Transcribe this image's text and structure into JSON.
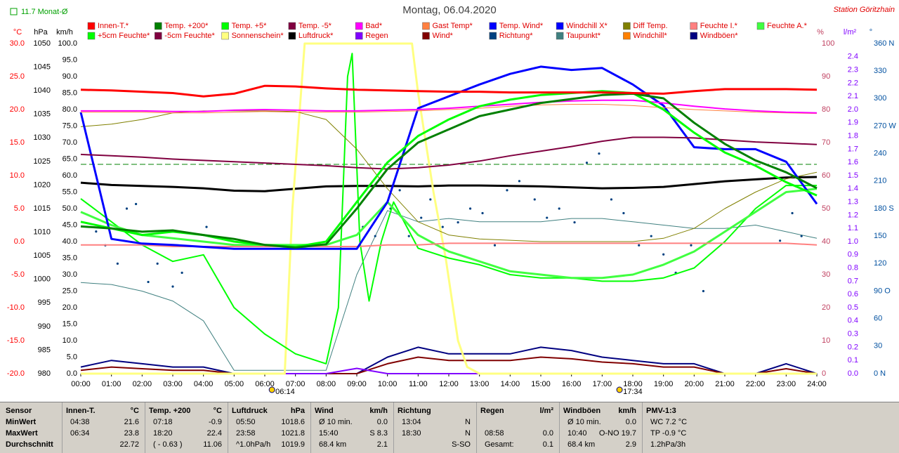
{
  "chart_data": {
    "type": "line",
    "title": "Montag, 06.04.2020",
    "station": "Station Göritzhain",
    "monthly_mean": {
      "value": 11.7,
      "label": "11.7 Monat-Ø"
    },
    "sun_markers": [
      {
        "value": 6.2333,
        "label": "06:14"
      },
      {
        "value": 17.5667,
        "label": "17:34"
      }
    ],
    "x": [
      0,
      1,
      2,
      3,
      4,
      5,
      6,
      7,
      8,
      9,
      10,
      11,
      12,
      13,
      14,
      15,
      16,
      17,
      18,
      19,
      20,
      21,
      22,
      23,
      24
    ],
    "xlim": [
      0,
      24
    ],
    "xticks": [
      {
        "value": 0,
        "label": "00:00"
      },
      {
        "value": 1,
        "label": "01:00"
      },
      {
        "value": 2,
        "label": "02:00"
      },
      {
        "value": 3,
        "label": "03:00"
      },
      {
        "value": 4,
        "label": "04:00"
      },
      {
        "value": 5,
        "label": "05:00"
      },
      {
        "value": 6,
        "label": "06:00"
      },
      {
        "value": 7,
        "label": "07:00"
      },
      {
        "value": 8,
        "label": "08:00"
      },
      {
        "value": 9,
        "label": "09:00"
      },
      {
        "value": 10,
        "label": "10:00"
      },
      {
        "value": 11,
        "label": "11:00"
      },
      {
        "value": 12,
        "label": "12:00"
      },
      {
        "value": 13,
        "label": "13:00"
      },
      {
        "value": 14,
        "label": "14:00"
      },
      {
        "value": 15,
        "label": "15:00"
      },
      {
        "value": 16,
        "label": "16:00"
      },
      {
        "value": 17,
        "label": "17:00"
      },
      {
        "value": 18,
        "label": "18:00"
      },
      {
        "value": 19,
        "label": "19:00"
      },
      {
        "value": 20,
        "label": "20:00"
      },
      {
        "value": 21,
        "label": "21:00"
      },
      {
        "value": 22,
        "label": "22:00"
      },
      {
        "value": 23,
        "label": "23:00"
      },
      {
        "value": 24,
        "label": "24:00"
      }
    ],
    "y_label": "°C",
    "ylim": [
      -20,
      30
    ],
    "yticks": [
      {
        "value": 30,
        "label": "30.0"
      },
      {
        "value": 25,
        "label": "25.0"
      },
      {
        "value": 20,
        "label": "20.0"
      },
      {
        "value": 15,
        "label": "15.0"
      },
      {
        "value": 10,
        "label": "10.0"
      },
      {
        "value": 5,
        "label": "5.0"
      },
      {
        "value": 0,
        "label": "0.0"
      },
      {
        "value": -5,
        "label": "-5.0"
      },
      {
        "value": -10,
        "label": "-10.0"
      },
      {
        "value": -15,
        "label": "-15.0"
      },
      {
        "value": -20,
        "label": "-20.0"
      }
    ],
    "y2_label": "hPa",
    "y2lim": [
      980,
      1050
    ],
    "y2ticks": [
      1050,
      1045,
      1040,
      1035,
      1030,
      1025,
      1020,
      1015,
      1010,
      1005,
      1000,
      995,
      990,
      985,
      980
    ],
    "y3_label": "km/h",
    "y3lim": [
      0,
      100
    ],
    "y3ticks": [
      {
        "value": 100,
        "label": "100.0"
      },
      {
        "value": 95,
        "label": "95.0"
      },
      {
        "value": 90,
        "label": "90.0"
      },
      {
        "value": 85,
        "label": "85.0"
      },
      {
        "value": 80,
        "label": "80.0"
      },
      {
        "value": 75,
        "label": "75.0"
      },
      {
        "value": 70,
        "label": "70.0"
      },
      {
        "value": 65,
        "label": "65.0"
      },
      {
        "value": 60,
        "label": "60.0"
      },
      {
        "value": 55,
        "label": "55.0"
      },
      {
        "value": 50,
        "label": "50.0"
      },
      {
        "value": 45,
        "label": "45.0"
      },
      {
        "value": 40,
        "label": "40.0"
      },
      {
        "value": 35,
        "label": "35.0"
      },
      {
        "value": 30,
        "label": "30.0"
      },
      {
        "value": 25,
        "label": "25.0"
      },
      {
        "value": 20,
        "label": "20.0"
      },
      {
        "value": 15,
        "label": "15.0"
      },
      {
        "value": 10,
        "label": "10.0"
      },
      {
        "value": 5,
        "label": "5.0"
      },
      {
        "value": 0,
        "label": "0.0"
      }
    ],
    "y4_label": "%",
    "y4lim": [
      0,
      100
    ],
    "y4ticks": [
      100,
      90,
      80,
      70,
      60,
      50,
      40,
      30,
      20,
      10,
      0
    ],
    "y5_label": "l/m²",
    "y5lim": [
      0,
      2.5
    ],
    "y5ticks": [
      2.4,
      2.3,
      2.2,
      2.1,
      {
        "value": 2,
        "label": "2.0"
      },
      1.9,
      1.8,
      1.7,
      1.6,
      1.5,
      1.4,
      1.3,
      1.2,
      1.1,
      {
        "value": 1,
        "label": "1.0"
      },
      0.9,
      0.8,
      0.7,
      0.6,
      0.5,
      0.4,
      0.3,
      0.2,
      0.1,
      {
        "value": 0,
        "label": "0.0"
      }
    ],
    "y6_label": "°",
    "y6lim": [
      0,
      360
    ],
    "y6ticks": [
      {
        "value": 360,
        "label": "360 N"
      },
      330,
      300,
      {
        "value": 270,
        "label": "270 W"
      },
      240,
      210,
      {
        "value": 180,
        "label": "180 S"
      },
      150,
      120,
      {
        "value": 90,
        "label": "90 O"
      },
      60,
      30,
      {
        "value": 0,
        "label": "0 N"
      }
    ],
    "series": [
      {
        "name": "Innen-T.*",
        "color": "#ff0000",
        "axis": "y",
        "line_width": 3,
        "values": [
          23.0,
          22.9,
          22.7,
          22.5,
          22.0,
          22.4,
          23.6,
          23.5,
          23.2,
          23.0,
          22.9,
          22.8,
          22.7,
          22.7,
          22.6,
          22.6,
          22.6,
          22.6,
          22.5,
          22.4,
          22.8,
          23.1,
          23.1,
          23.1,
          23.0
        ]
      },
      {
        "name": "Temp. +200*",
        "color": "#008000",
        "axis": "y",
        "line_width": 3,
        "values": [
          2.3,
          2.0,
          1.5,
          1.7,
          1.0,
          0.4,
          -0.5,
          -0.9,
          -0.4,
          5.0,
          11.0,
          15.0,
          17.0,
          19.0,
          20.0,
          21.0,
          21.6,
          22.2,
          22.4,
          21.7,
          18.0,
          14.8,
          12.3,
          10.5,
          8.1
        ]
      },
      {
        "name": "Temp. +5*",
        "color": "#00ff00",
        "axis": "y",
        "line_width": 3,
        "values": [
          3.0,
          2.0,
          1.0,
          1.5,
          1.0,
          0.0,
          -0.5,
          -0.8,
          0.0,
          6.0,
          12.0,
          16.0,
          18.5,
          20.5,
          21.5,
          22.2,
          22.5,
          22.8,
          22.5,
          20.0,
          16.5,
          13.5,
          11.5,
          9.0,
          7.0
        ]
      },
      {
        "name": "Temp. -5*",
        "color": "#800040",
        "axis": "y",
        "line_width": 2,
        "values": [
          13.2,
          13.0,
          12.8,
          12.5,
          12.3,
          12.1,
          11.9,
          11.7,
          11.5,
          11.2,
          11.0,
          11.2,
          11.6,
          12.2,
          13.0,
          13.7,
          14.4,
          15.2,
          15.8,
          15.8,
          15.7,
          15.4,
          15.1,
          14.9,
          14.7
        ]
      },
      {
        "name": "Bad*",
        "color": "#ff00ff",
        "axis": "y",
        "line_width": 2,
        "values": [
          19.8,
          19.8,
          19.8,
          19.7,
          19.7,
          19.9,
          20.0,
          19.9,
          19.8,
          19.8,
          19.9,
          20.0,
          20.2,
          20.5,
          20.8,
          21.1,
          21.3,
          21.4,
          21.4,
          21.0,
          20.5,
          20.1,
          19.8,
          19.6,
          19.5
        ]
      },
      {
        "name": "Gast Temp*",
        "color": "#ff8040",
        "axis": "y",
        "line_width": 1,
        "values": [
          19.6,
          19.6,
          19.6,
          19.5,
          19.5,
          19.6,
          19.7,
          19.6,
          19.6,
          19.6,
          19.7,
          19.8,
          20.0,
          20.2,
          20.5,
          20.7,
          20.8,
          20.8,
          20.6,
          20.3,
          20.0,
          19.8,
          19.6,
          19.5,
          19.4
        ]
      },
      {
        "name": "Temp. Wind*",
        "color": "#0000ff",
        "axis": "y",
        "line_width": 3,
        "values": [
          19.6,
          0.4,
          -0.3,
          -0.5,
          -0.8,
          -1.1,
          -1.1,
          -1.1,
          -1.1,
          -1.1,
          6.0,
          20.2,
          22.0,
          23.8,
          25.4,
          26.5,
          26.0,
          26.3,
          23.8,
          20.6,
          14.3,
          14.0,
          14.0,
          12.1,
          5.7
        ]
      },
      {
        "name": "Windchill X*",
        "color": "#0000ff"
      },
      {
        "name": "Diff Temp.",
        "color": "#808000",
        "axis": "y",
        "line_width": 1,
        "values": [
          17.4,
          17.8,
          18.5,
          19.5,
          19.8,
          19.8,
          19.8,
          19.7,
          18.5,
          14,
          8,
          3,
          1,
          0.4,
          0.2,
          0,
          0,
          0,
          0,
          0.5,
          2,
          5,
          7.5,
          9.5,
          10.5
        ]
      },
      {
        "name": "Feuchte I.*",
        "color": "#ff8080",
        "axis": "y4",
        "line_width": 2,
        "values": [
          39,
          39,
          39,
          38.5,
          38.5,
          38.5,
          38.5,
          38.5,
          38.5,
          38.5,
          39,
          39,
          39.5,
          39.5,
          39.5,
          39.5,
          39.5,
          39.5,
          39.5,
          39.5,
          39.5,
          39.5,
          39.5,
          39.5,
          39
        ]
      },
      {
        "name": "Feuchte A.*",
        "color": "#40ff40",
        "axis": "y4",
        "line_width": 3,
        "values": [
          49,
          45,
          42,
          41,
          40,
          39,
          39,
          39,
          39,
          42,
          52,
          42,
          37,
          34,
          31,
          30,
          29,
          29,
          30,
          33,
          37,
          43,
          49,
          55,
          56
        ]
      },
      {
        "name": "+5cm Feuchte*",
        "color": "#00ff00",
        "axis": "y4",
        "line_width": 2,
        "x": [
          0,
          1,
          2,
          3,
          4,
          5,
          6,
          7,
          8,
          8.4,
          8.7,
          8.85,
          9.1,
          9.4,
          9.8,
          10.2,
          11,
          12,
          13,
          14,
          15,
          16,
          17,
          18,
          19,
          20,
          21,
          22,
          23,
          24
        ],
        "values": [
          53,
          46,
          39,
          34,
          36,
          20,
          12,
          6,
          3,
          20,
          90,
          97,
          40,
          22,
          40,
          52,
          38,
          35,
          33,
          30,
          29,
          29,
          28,
          28,
          29,
          32,
          40,
          50,
          57,
          57
        ]
      },
      {
        "name": "-5cm Feuchte*",
        "color": "#800040"
      },
      {
        "name": "Sonnenschein*",
        "color": "#ffff80",
        "axis": "y4",
        "line_width": 3,
        "x": [
          0,
          6.65,
          6.9,
          7.3,
          10.8,
          11.0,
          11.5,
          11.9,
          12.3,
          12.6,
          13.0,
          24
        ],
        "values": [
          0,
          0,
          50,
          100,
          100,
          85,
          55,
          35,
          10,
          2,
          0,
          0
        ]
      },
      {
        "name": "Luftdruck*",
        "color": "#000000",
        "axis": "y2",
        "line_width": 3,
        "values": [
          1020.5,
          1020.0,
          1019.8,
          1019.6,
          1019.3,
          1018.8,
          1018.7,
          1019.2,
          1019.7,
          1019.8,
          1019.8,
          1019.7,
          1019.9,
          1019.9,
          1019.8,
          1019.7,
          1019.5,
          1019.3,
          1019.4,
          1019.6,
          1020.2,
          1020.8,
          1021.2,
          1021.6,
          1021.7
        ]
      },
      {
        "name": "Regen",
        "color": "#8000ff",
        "axis": "y5",
        "line_width": 2,
        "values": [
          0,
          0,
          0,
          0,
          0,
          0,
          0,
          0,
          0,
          0.04,
          0,
          0,
          0,
          0,
          0,
          0,
          0,
          0,
          0,
          0,
          0,
          0,
          0,
          0,
          0
        ]
      },
      {
        "name": "Wind*",
        "color": "#800000",
        "axis": "y3",
        "line_width": 2,
        "values": [
          1,
          2,
          1.5,
          1,
          1,
          0,
          0,
          0,
          0,
          0,
          3,
          5,
          4,
          4,
          4,
          5,
          4.5,
          3.5,
          3,
          2,
          2,
          0,
          0,
          1.5,
          0
        ]
      },
      {
        "name": "Richtung*",
        "color": "#004080",
        "axis": "y6",
        "mark": "points",
        "x": [
          0.5,
          0.8,
          1.2,
          1.5,
          1.8,
          2.2,
          2.5,
          3.0,
          3.3,
          4.1,
          9.2,
          9.6,
          10.1,
          10.4,
          10.7,
          11.1,
          11.4,
          11.8,
          12.3,
          12.7,
          13.1,
          13.5,
          13.9,
          14.3,
          14.8,
          15.2,
          15.6,
          16.1,
          16.5,
          16.9,
          17.3,
          17.7,
          18.2,
          18.6,
          19.0,
          19.4,
          19.9,
          20.3,
          22.8,
          23.2,
          23.5
        ],
        "values": [
          155,
          140,
          120,
          180,
          185,
          100,
          120,
          95,
          110,
          160,
          160,
          150,
          180,
          200,
          150,
          170,
          190,
          160,
          165,
          180,
          175,
          140,
          200,
          210,
          190,
          170,
          180,
          165,
          230,
          240,
          190,
          175,
          140,
          150,
          130,
          110,
          140,
          90,
          145,
          175,
          150
        ]
      },
      {
        "name": "Taupunkt*",
        "color": "#408080",
        "axis": "y",
        "line_width": 1,
        "values": [
          -6.2,
          -6.5,
          -7.5,
          -9,
          -12,
          -19.5,
          -19.5,
          -19.5,
          -19.5,
          -5,
          4.7,
          3,
          3.5,
          3,
          3,
          3,
          3.5,
          3.5,
          3,
          2.5,
          2,
          2,
          2.5,
          1.5,
          0.5
        ]
      },
      {
        "name": "Windchill*",
        "color": "#ff8000"
      },
      {
        "name": "Windböen*",
        "color": "#000080",
        "axis": "y3",
        "line_width": 2,
        "values": [
          2,
          4,
          3,
          2,
          2,
          0,
          0,
          0,
          0,
          0,
          5,
          8,
          6,
          6,
          6,
          8,
          7,
          5,
          4,
          3,
          3,
          0,
          0,
          3,
          0
        ]
      }
    ]
  },
  "table": {
    "row_labels": [
      "Sensor",
      "MinWert",
      "MaxWert",
      "Durchschnitt"
    ],
    "columns": [
      {
        "title": "Innen-T.",
        "unit": "°C",
        "cells": [
          [
            "04:38",
            "21.6"
          ],
          [
            "06:34",
            "23.8"
          ],
          [
            null,
            "22.72"
          ]
        ]
      },
      {
        "title": "Temp. +200",
        "unit": "°C",
        "cells": [
          [
            "07:18",
            "-0.9"
          ],
          [
            "18:20",
            "22.4"
          ],
          [
            "( - 0.63 )",
            "11.06"
          ]
        ]
      },
      {
        "title": "Luftdruck",
        "unit": "hPa",
        "cells": [
          [
            "05:50",
            "1018.6"
          ],
          [
            "23:58",
            "1021.8"
          ],
          [
            "^1.0hPa/h",
            "1019.9"
          ]
        ]
      },
      {
        "title": "Wind",
        "unit": "km/h",
        "cells": [
          [
            "Ø 10 min.",
            "0.0"
          ],
          [
            "15:40",
            "S 8.3"
          ],
          [
            "68.4 km",
            "2.1"
          ]
        ]
      },
      {
        "title": "Richtung",
        "unit": null,
        "cells": [
          [
            "13:04",
            "N"
          ],
          [
            "18:30",
            "N"
          ],
          [
            null,
            "S-SO"
          ]
        ]
      },
      {
        "title": "Regen",
        "unit": "l/m²",
        "cells": [
          [
            null,
            null
          ],
          [
            "08:58",
            "0.0"
          ],
          [
            "Gesamt:",
            "0.1"
          ]
        ]
      },
      {
        "title": "Windböen",
        "unit": "km/h",
        "cells": [
          [
            "Ø 10 min.",
            "0.0"
          ],
          [
            "10:40",
            "O-NO 19.7"
          ],
          [
            "68.4 km",
            "2.9"
          ]
        ]
      },
      {
        "title": "PMV-1:3",
        "unit": null,
        "cells": [
          [
            "WC 7.2 °C",
            null
          ],
          [
            "TP -0.9 °C",
            null
          ],
          [
            "1.2hPa/3h",
            null
          ]
        ]
      }
    ]
  }
}
